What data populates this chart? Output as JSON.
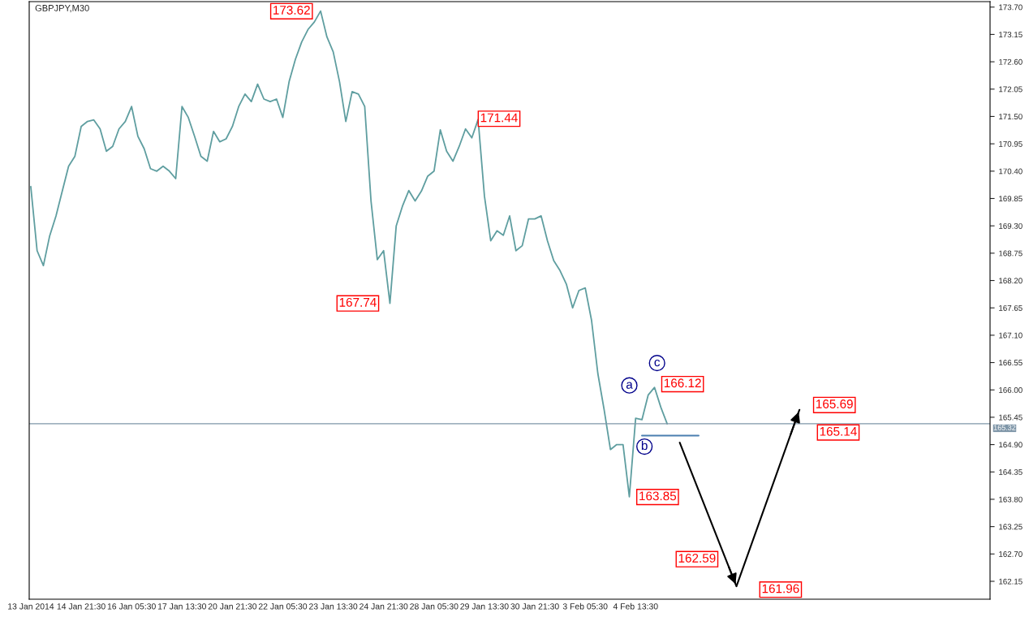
{
  "chart_data": {
    "type": "line",
    "title": "GBPJPY,M30",
    "categories": [
      "13 Jan 2014",
      null,
      null,
      null,
      null,
      null,
      null,
      null,
      "14 Jan 21:30",
      null,
      null,
      null,
      null,
      null,
      null,
      null,
      "16 Jan 05:30",
      null,
      null,
      null,
      null,
      null,
      null,
      null,
      "17 Jan 13:30",
      null,
      null,
      null,
      null,
      null,
      null,
      null,
      "20 Jan 21:30",
      null,
      null,
      null,
      null,
      null,
      null,
      null,
      "22 Jan 05:30",
      null,
      null,
      null,
      null,
      null,
      null,
      null,
      "23 Jan 13:30",
      null,
      null,
      null,
      null,
      null,
      null,
      null,
      "24 Jan 21:30",
      null,
      null,
      null,
      null,
      null,
      null,
      null,
      "28 Jan 05:30",
      null,
      null,
      null,
      null,
      null,
      null,
      null,
      "29 Jan 13:30",
      null,
      null,
      null,
      null,
      null,
      null,
      null,
      "30 Jan 21:30",
      null,
      null,
      null,
      null,
      null,
      null,
      null,
      "3 Feb 05:30",
      null,
      null,
      null,
      null,
      null,
      null,
      null,
      "4 Feb 13:30",
      null,
      null,
      null,
      null,
      null,
      null,
      null,
      null,
      null,
      null,
      null,
      null,
      null,
      null,
      null,
      null,
      null,
      null,
      null,
      null,
      null,
      null,
      null,
      null,
      null,
      null,
      null,
      null,
      null,
      null,
      null,
      null,
      null,
      null,
      null,
      null,
      null,
      null,
      null,
      null,
      null,
      null,
      null,
      null,
      null,
      null,
      null,
      null,
      null,
      null,
      null,
      null,
      null,
      null,
      null,
      null
    ],
    "series": [
      {
        "color": "#5f9ea0",
        "values": [
          170.09,
          168.8,
          168.5,
          169.1,
          169.5,
          170.0,
          170.5,
          170.7,
          171.3,
          171.4,
          171.43,
          171.25,
          170.8,
          170.9,
          171.25,
          171.4,
          171.7,
          171.1,
          170.85,
          170.45,
          170.4,
          170.5,
          170.4,
          170.25,
          171.7,
          171.48,
          171.1,
          170.7,
          170.6,
          171.2,
          170.99,
          171.05,
          171.3,
          171.7,
          171.95,
          171.8,
          172.15,
          171.85,
          171.8,
          171.85,
          171.48,
          172.2,
          172.65,
          173.0,
          173.25,
          173.4,
          173.62,
          173.1,
          172.8,
          172.2,
          171.4,
          172.0,
          171.95,
          171.7,
          169.8,
          168.62,
          168.8,
          167.74,
          169.3,
          169.7,
          170.01,
          169.8,
          170.0,
          170.3,
          170.4,
          171.23,
          170.8,
          170.6,
          170.9,
          171.25,
          171.07,
          171.44,
          169.9,
          169.0,
          169.2,
          169.11,
          169.5,
          168.8,
          168.9,
          169.44,
          169.44,
          169.5,
          169.0,
          168.6,
          168.4,
          168.13,
          167.65,
          168.0,
          168.05,
          167.4,
          166.33,
          165.6,
          164.8,
          164.9,
          164.9,
          163.85,
          165.43,
          165.4,
          165.9,
          166.05,
          165.65,
          165.32,
          null,
          null,
          null,
          null,
          null,
          null,
          null,
          null,
          null,
          null,
          null,
          null,
          null,
          null,
          null,
          null,
          null,
          null,
          null,
          null,
          null,
          null,
          null,
          null,
          null,
          null,
          null,
          null,
          null,
          null,
          null,
          null,
          null,
          null,
          null,
          null,
          null,
          null,
          null,
          null,
          null,
          null,
          null,
          null,
          null,
          null,
          null,
          null,
          null,
          null,
          null
        ]
      },
      {
        "color": "#000000",
        "values": [
          null,
          null,
          null,
          null,
          null,
          null,
          null,
          null,
          null,
          null,
          null,
          null,
          null,
          null,
          null,
          null,
          null,
          null,
          null,
          null,
          null,
          null,
          null,
          null,
          null,
          null,
          null,
          null,
          null,
          null,
          null,
          null,
          null,
          null,
          null,
          null,
          null,
          null,
          null,
          null,
          null,
          null,
          null,
          null,
          null,
          null,
          null,
          null,
          null,
          null,
          null,
          null,
          null,
          null,
          null,
          null,
          null,
          null,
          null,
          null,
          null,
          null,
          null,
          null,
          null,
          null,
          null,
          null,
          null,
          null,
          null,
          null,
          null,
          null,
          null,
          null,
          null,
          null,
          null,
          null,
          null,
          null,
          null,
          null,
          null,
          null,
          null,
          null,
          null,
          null,
          null,
          null,
          null,
          null,
          null,
          null,
          null,
          null,
          null,
          null,
          null,
          null,
          null,
          164.94,
          null,
          null,
          null,
          null,
          null,
          null,
          null,
          null,
          162.05,
          null,
          null,
          null,
          null,
          null,
          null,
          null,
          null,
          null,
          165.6,
          null,
          null,
          null,
          null,
          null,
          null,
          null,
          null,
          null,
          null,
          null,
          null,
          null,
          null,
          null,
          null,
          null,
          null,
          null,
          null,
          null,
          null,
          null,
          null,
          null,
          null,
          null,
          null,
          null,
          null
        ]
      },
      {
        "color": "#4a7fb0",
        "values": [
          null,
          null,
          null,
          null,
          null,
          null,
          null,
          null,
          null,
          null,
          null,
          null,
          null,
          null,
          null,
          null,
          null,
          null,
          null,
          null,
          null,
          null,
          null,
          null,
          null,
          null,
          null,
          null,
          null,
          null,
          null,
          null,
          null,
          null,
          null,
          null,
          null,
          null,
          null,
          null,
          null,
          null,
          null,
          null,
          null,
          null,
          null,
          null,
          null,
          null,
          null,
          null,
          null,
          null,
          null,
          null,
          null,
          null,
          null,
          null,
          null,
          null,
          null,
          null,
          null,
          null,
          null,
          null,
          null,
          null,
          null,
          null,
          null,
          null,
          null,
          null,
          null,
          null,
          null,
          null,
          null,
          null,
          null,
          null,
          null,
          null,
          null,
          null,
          null,
          null,
          null,
          null,
          null,
          null,
          null,
          null,
          null,
          165.08,
          null,
          null,
          null,
          null,
          null,
          null,
          null,
          null,
          165.08,
          null,
          null,
          null,
          null,
          null,
          null,
          null,
          null,
          null,
          null,
          null,
          null,
          null,
          null,
          null,
          null,
          null,
          null,
          null,
          null,
          null,
          null,
          null,
          null,
          null,
          null,
          null,
          null,
          null,
          null,
          null,
          null,
          null,
          null,
          null,
          null,
          null,
          null,
          null,
          null,
          null,
          null,
          null,
          null,
          null,
          null
        ]
      }
    ],
    "ylim": [
      161.79,
      173.81
    ],
    "yticks": [
      {
        "value": 162.15,
        "label": "162.15"
      },
      {
        "value": 162.7,
        "label": "162.70"
      },
      {
        "value": 163.25,
        "label": "163.25"
      },
      {
        "value": 163.8,
        "label": "163.80"
      },
      {
        "value": 164.35,
        "label": "164.35"
      },
      {
        "value": 164.9,
        "label": "164.90"
      },
      {
        "value": 165.45,
        "label": "165.45"
      },
      {
        "value": 166.0,
        "label": "166.00"
      },
      {
        "value": 166.55,
        "label": "166.55"
      },
      {
        "value": 167.1,
        "label": "167.10"
      },
      {
        "value": 167.65,
        "label": "167.65"
      },
      {
        "value": 168.2,
        "label": "168.20"
      },
      {
        "value": 168.75,
        "label": "168.75"
      },
      {
        "value": 169.3,
        "label": "169.30"
      },
      {
        "value": 169.85,
        "label": "169.85"
      },
      {
        "value": 170.4,
        "label": "170.40"
      },
      {
        "value": 170.95,
        "label": "170.95"
      },
      {
        "value": 171.5,
        "label": "171.50"
      },
      {
        "value": 172.05,
        "label": "172.05"
      },
      {
        "value": 172.6,
        "label": "172.60"
      },
      {
        "value": 173.15,
        "label": "173.15"
      },
      {
        "value": 173.7,
        "label": "173.70"
      }
    ],
    "ref_lines": [
      {
        "axis": "y",
        "value": 165.32,
        "label": "165.32",
        "color": "#7f96a8"
      }
    ],
    "annotations": [
      "173.62",
      "171.44",
      "167.74",
      "166.12",
      "163.85",
      "162.59",
      "161.96",
      "165.69",
      "165.14",
      {
        "text": "a",
        "y": 166.09
      },
      {
        "text": "b",
        "y": 164.86
      },
      {
        "text": "c",
        "y": 166.54
      }
    ],
    "grid": false
  }
}
